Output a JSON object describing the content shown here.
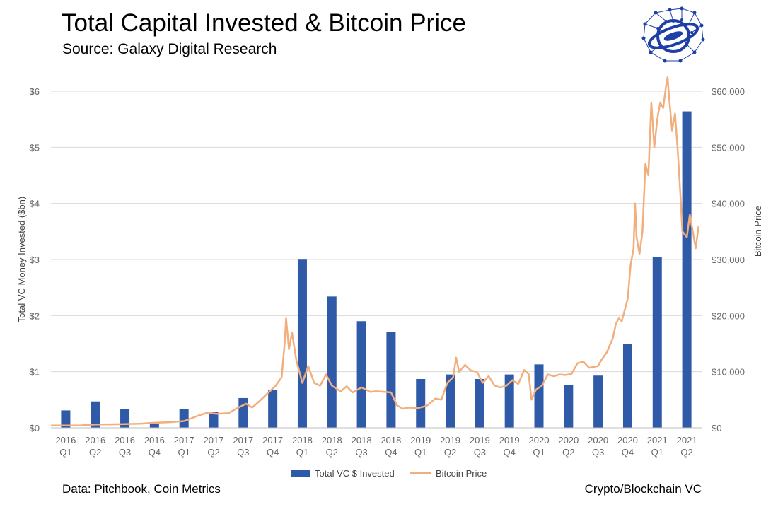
{
  "header": {
    "title": "Total Capital Invested & Bitcoin Price",
    "subtitle": "Source: Galaxy Digital Research"
  },
  "footer": {
    "left": "Data: Pitchbook, Coin Metrics",
    "right": "Crypto/Blockchain VC"
  },
  "colors": {
    "bar": "#2e5aa7",
    "line": "#f2ae7c",
    "grid": "#d9d9d9",
    "logo": "#1f3fa8"
  },
  "chart_data": {
    "type": "bar",
    "title": "Total Capital Invested & Bitcoin Price",
    "categories": [
      "2016 Q1",
      "2016 Q2",
      "2016 Q3",
      "2016 Q4",
      "2017 Q1",
      "2017 Q2",
      "2017 Q3",
      "2017 Q4",
      "2018 Q1",
      "2018 Q2",
      "2018 Q3",
      "2018 Q4",
      "2019 Q1",
      "2019 Q2",
      "2019 Q3",
      "2019 Q4",
      "2020 Q1",
      "2020 Q2",
      "2020 Q3",
      "2020 Q4",
      "2021 Q1",
      "2021 Q2"
    ],
    "category_lines": [
      [
        "2016",
        "Q1"
      ],
      [
        "2016",
        "Q2"
      ],
      [
        "2016",
        "Q3"
      ],
      [
        "2016",
        "Q4"
      ],
      [
        "2017",
        "Q1"
      ],
      [
        "2017",
        "Q2"
      ],
      [
        "2017",
        "Q3"
      ],
      [
        "2017",
        "Q4"
      ],
      [
        "2018",
        "Q1"
      ],
      [
        "2018",
        "Q2"
      ],
      [
        "2018",
        "Q3"
      ],
      [
        "2018",
        "Q4"
      ],
      [
        "2019",
        "Q1"
      ],
      [
        "2019",
        "Q2"
      ],
      [
        "2019",
        "Q3"
      ],
      [
        "2019",
        "Q4"
      ],
      [
        "2020",
        "Q1"
      ],
      [
        "2020",
        "Q2"
      ],
      [
        "2020",
        "Q3"
      ],
      [
        "2020",
        "Q4"
      ],
      [
        "2021",
        "Q1"
      ],
      [
        "2021",
        "Q2"
      ]
    ],
    "series": [
      {
        "name": "Total VC $ Invested",
        "type": "bar",
        "axis": "left",
        "values": [
          0.31,
          0.47,
          0.33,
          0.1,
          0.34,
          0.28,
          0.53,
          0.67,
          3.01,
          2.34,
          1.9,
          1.71,
          0.87,
          0.95,
          0.87,
          0.95,
          1.13,
          0.76,
          0.93,
          1.49,
          3.04,
          5.64
        ]
      },
      {
        "name": "Bitcoin Price",
        "type": "line",
        "axis": "right",
        "points": [
          [
            0,
            400
          ],
          [
            0.5,
            420
          ],
          [
            1,
            430
          ],
          [
            1.5,
            600
          ],
          [
            2,
            620
          ],
          [
            2.5,
            650
          ],
          [
            3,
            720
          ],
          [
            3.5,
            900
          ],
          [
            4,
            1000
          ],
          [
            4.5,
            1200
          ],
          [
            5,
            2200
          ],
          [
            5.3,
            2700
          ],
          [
            5.6,
            2500
          ],
          [
            6,
            2600
          ],
          [
            6.3,
            3500
          ],
          [
            6.6,
            4300
          ],
          [
            6.8,
            3600
          ],
          [
            7,
            4500
          ],
          [
            7.3,
            6000
          ],
          [
            7.6,
            7500
          ],
          [
            7.8,
            9000
          ],
          [
            7.9,
            15000
          ],
          [
            7.95,
            19500
          ],
          [
            8.05,
            14000
          ],
          [
            8.15,
            17000
          ],
          [
            8.3,
            12000
          ],
          [
            8.5,
            8000
          ],
          [
            8.7,
            11000
          ],
          [
            8.9,
            8000
          ],
          [
            9.1,
            7500
          ],
          [
            9.3,
            9500
          ],
          [
            9.5,
            7500
          ],
          [
            9.8,
            6500
          ],
          [
            10,
            7400
          ],
          [
            10.2,
            6300
          ],
          [
            10.5,
            7200
          ],
          [
            10.8,
            6400
          ],
          [
            11,
            6500
          ],
          [
            11.3,
            6400
          ],
          [
            11.5,
            6300
          ],
          [
            11.7,
            4000
          ],
          [
            11.9,
            3400
          ],
          [
            12.1,
            3600
          ],
          [
            12.4,
            3500
          ],
          [
            12.7,
            3900
          ],
          [
            13,
            5200
          ],
          [
            13.2,
            5000
          ],
          [
            13.4,
            8000
          ],
          [
            13.6,
            9000
          ],
          [
            13.7,
            12500
          ],
          [
            13.8,
            10000
          ],
          [
            14,
            11200
          ],
          [
            14.2,
            10200
          ],
          [
            14.4,
            10000
          ],
          [
            14.6,
            8000
          ],
          [
            14.8,
            9200
          ],
          [
            15,
            7500
          ],
          [
            15.2,
            7200
          ],
          [
            15.4,
            7500
          ],
          [
            15.6,
            8500
          ],
          [
            15.8,
            7800
          ],
          [
            16,
            10300
          ],
          [
            16.15,
            9600
          ],
          [
            16.25,
            5000
          ],
          [
            16.4,
            6800
          ],
          [
            16.6,
            7500
          ],
          [
            16.8,
            9500
          ],
          [
            17,
            9200
          ],
          [
            17.2,
            9500
          ],
          [
            17.4,
            9400
          ],
          [
            17.6,
            9600
          ],
          [
            17.8,
            11500
          ],
          [
            18,
            11800
          ],
          [
            18.2,
            10700
          ],
          [
            18.5,
            11000
          ],
          [
            18.6,
            12000
          ],
          [
            18.8,
            13500
          ],
          [
            19,
            16000
          ],
          [
            19.1,
            18500
          ],
          [
            19.2,
            19500
          ],
          [
            19.3,
            19000
          ],
          [
            19.5,
            23000
          ],
          [
            19.6,
            29000
          ],
          [
            19.7,
            32000
          ],
          [
            19.75,
            40000
          ],
          [
            19.8,
            34000
          ],
          [
            19.9,
            31000
          ],
          [
            20,
            35000
          ],
          [
            20.1,
            47000
          ],
          [
            20.2,
            45000
          ],
          [
            20.3,
            58000
          ],
          [
            20.4,
            50000
          ],
          [
            20.5,
            55000
          ],
          [
            20.6,
            58000
          ],
          [
            20.7,
            57000
          ],
          [
            20.8,
            61000
          ],
          [
            20.85,
            62500
          ],
          [
            20.9,
            59000
          ],
          [
            21,
            53000
          ],
          [
            21.1,
            56000
          ],
          [
            21.2,
            49000
          ],
          [
            21.3,
            40000
          ],
          [
            21.35,
            35000
          ],
          [
            21.5,
            34000
          ],
          [
            21.6,
            38000
          ],
          [
            21.7,
            35000
          ],
          [
            21.8,
            32000
          ],
          [
            21.9,
            36000
          ]
        ]
      }
    ],
    "ylabel_left": "Total VC Money Invested ($bn)",
    "ylabel_right": "Bitcoin Price",
    "ylim_left": [
      0,
      6
    ],
    "ylim_right": [
      0,
      60000
    ],
    "yticks_left": [
      "$0",
      "$1",
      "$2",
      "$3",
      "$4",
      "$5",
      "$6"
    ],
    "yticks_right": [
      "$0",
      "$10,000",
      "$20,000",
      "$30,000",
      "$40,000",
      "$50,000",
      "$60,000"
    ],
    "grid": true,
    "legend": {
      "position": "bottom-center",
      "entries": [
        "Total VC $ Invested",
        "Bitcoin Price"
      ]
    }
  }
}
